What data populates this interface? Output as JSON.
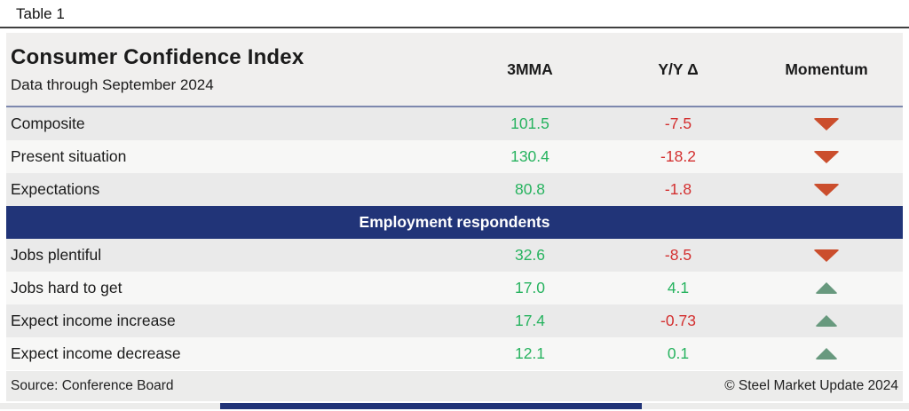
{
  "table_label": "Table 1",
  "header": {
    "title": "Consumer Confidence Index",
    "subtitle": "Data through September 2024",
    "columns": [
      "3MMA",
      "Y/Y Δ",
      "Momentum"
    ]
  },
  "footer": {
    "source": "Source: Conference Board",
    "copyright": "© Steel Market Update 2024"
  },
  "colors": {
    "positive": "#27b35f",
    "negative": "#d32f2f",
    "momentum_up": "#68997e",
    "momentum_down": "#cb4e2d",
    "band_navy": "#213478",
    "header_bg": "#f0efee",
    "row_gray": "#eaeaea",
    "row_light": "#f7f7f6",
    "footer_bg": "#ececeb",
    "header_rule": "#7d88ae",
    "top_rule": "#404040"
  },
  "chart_data": {
    "type": "table",
    "title": "Consumer Confidence Index",
    "subtitle": "Data through September 2024",
    "columns": [
      "3MMA",
      "Y/Y Δ",
      "Momentum"
    ],
    "sections": [
      {
        "name": "",
        "rows": [
          {
            "label": "Composite",
            "mma_text": "101.5",
            "mma_3": 101.5,
            "yoy_text": "-7.5",
            "yoy_delta": -7.5,
            "momentum": "down"
          },
          {
            "label": "Present situation",
            "mma_text": "130.4",
            "mma_3": 130.4,
            "yoy_text": "-18.2",
            "yoy_delta": -18.2,
            "momentum": "down"
          },
          {
            "label": "Expectations",
            "mma_text": "80.8",
            "mma_3": 80.8,
            "yoy_text": "-1.8",
            "yoy_delta": -1.8,
            "momentum": "down"
          }
        ]
      },
      {
        "name": "Employment respondents",
        "rows": [
          {
            "label": "Jobs plentiful",
            "mma_text": "32.6",
            "mma_3": 32.6,
            "yoy_text": "-8.5",
            "yoy_delta": -8.5,
            "momentum": "down"
          },
          {
            "label": "Jobs hard to get",
            "mma_text": "17.0",
            "mma_3": 17.0,
            "yoy_text": "4.1",
            "yoy_delta": 4.1,
            "momentum": "up"
          },
          {
            "label": "Expect income increase",
            "mma_text": "17.4",
            "mma_3": 17.4,
            "yoy_text": "-0.73",
            "yoy_delta": -0.73,
            "momentum": "up"
          },
          {
            "label": "Expect income decrease",
            "mma_text": "12.1",
            "mma_3": 12.1,
            "yoy_text": "0.1",
            "yoy_delta": 0.1,
            "momentum": "up"
          }
        ]
      }
    ]
  }
}
